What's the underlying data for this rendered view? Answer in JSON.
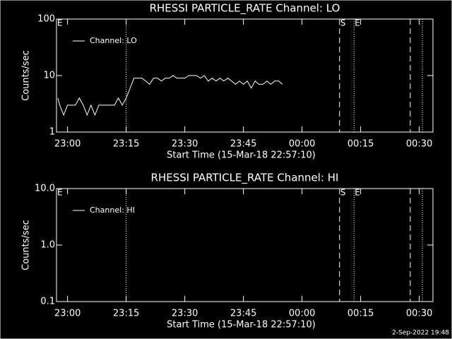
{
  "chart_data": [
    {
      "type": "line",
      "title": "RHESSI PARTICLE_RATE Channel: LO",
      "xlabel": "Start Time (15-Mar-18 22:57:10)",
      "ylabel": "Counts/sec",
      "log_y": true,
      "xlim": [
        1377.17,
        1473.5
      ],
      "xticks": [
        {
          "value": 1380,
          "label": "23:00"
        },
        {
          "value": 1395,
          "label": "23:15"
        },
        {
          "value": 1410,
          "label": "23:30"
        },
        {
          "value": 1425,
          "label": "23:45"
        },
        {
          "value": 1440,
          "label": "00:00"
        },
        {
          "value": 1455,
          "label": "00:15"
        },
        {
          "value": 1470,
          "label": "00:30"
        }
      ],
      "ylim": [
        1,
        100
      ],
      "yticks": [
        1,
        10,
        100
      ],
      "corner_label": "E",
      "markers": [
        {
          "x": 1395.0,
          "style": "dotted"
        },
        {
          "x": 1449.6,
          "style": "dashed",
          "label": "S"
        },
        {
          "x": 1453.3,
          "style": "dotted",
          "label": "E"
        },
        {
          "x": 1467.7,
          "style": "dashed"
        },
        {
          "x": 1470.8,
          "style": "dotted"
        }
      ],
      "x": [
        1377.5,
        1378,
        1379,
        1380,
        1381,
        1382,
        1383,
        1384,
        1385,
        1386,
        1387,
        1388,
        1389,
        1390,
        1391,
        1392,
        1393,
        1394,
        1395,
        1396,
        1397,
        1398,
        1399,
        1400,
        1401,
        1402,
        1403,
        1404,
        1405,
        1406,
        1407,
        1408,
        1409,
        1410,
        1411,
        1412,
        1413,
        1414,
        1415,
        1416,
        1417,
        1418,
        1419,
        1420,
        1421,
        1422,
        1423,
        1424,
        1425,
        1426,
        1427,
        1428,
        1429,
        1430,
        1431,
        1432,
        1433,
        1434,
        1435
      ],
      "series": [
        {
          "name": "Channel: LO",
          "color": "#ffffff",
          "values": [
            4,
            3,
            2,
            3,
            3,
            3,
            4,
            3,
            2,
            3,
            2,
            3,
            3,
            3,
            3,
            3,
            4,
            3,
            4,
            6,
            9,
            9,
            9,
            8,
            7,
            9,
            9,
            8,
            9,
            9,
            10,
            9,
            9,
            9,
            10,
            10,
            10,
            9,
            10,
            8,
            9,
            8,
            9,
            8,
            9,
            8,
            7,
            8,
            7,
            8,
            6,
            8,
            7,
            7,
            8,
            7,
            8,
            8,
            7
          ]
        }
      ]
    },
    {
      "type": "line",
      "title": "RHESSI PARTICLE_RATE Channel: HI",
      "xlabel": "Start Time (15-Mar-18 22:57:10)",
      "ylabel": "Counts/sec",
      "log_y": true,
      "xlim": [
        1377.17,
        1473.5
      ],
      "xticks": [
        {
          "value": 1380,
          "label": "23:00"
        },
        {
          "value": 1395,
          "label": "23:15"
        },
        {
          "value": 1410,
          "label": "23:30"
        },
        {
          "value": 1425,
          "label": "23:45"
        },
        {
          "value": 1440,
          "label": "00:00"
        },
        {
          "value": 1455,
          "label": "00:15"
        },
        {
          "value": 1470,
          "label": "00:30"
        }
      ],
      "ylim": [
        0.1,
        10
      ],
      "yticks": [
        0.1,
        {
          "value": 1,
          "label": "1.0"
        },
        {
          "value": 10,
          "label": "10.0"
        }
      ],
      "corner_label": "E",
      "markers": [
        {
          "x": 1395.0,
          "style": "dotted"
        },
        {
          "x": 1449.6,
          "style": "dashed",
          "label": "S"
        },
        {
          "x": 1453.3,
          "style": "dotted",
          "label": "E"
        },
        {
          "x": 1467.7,
          "style": "dashed"
        },
        {
          "x": 1470.8,
          "style": "dotted"
        }
      ],
      "x": [],
      "series": [
        {
          "name": "Channel: HI",
          "color": "#ffffff",
          "values": []
        }
      ]
    }
  ],
  "footer": "2-Sep-2022 19:48"
}
